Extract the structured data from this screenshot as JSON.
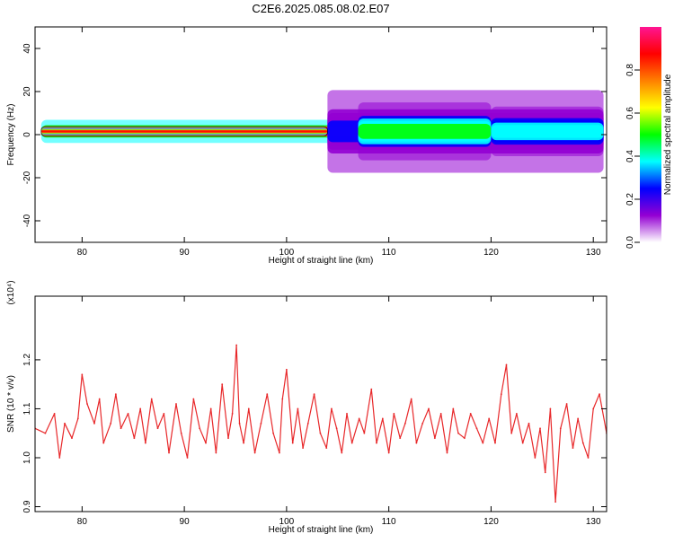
{
  "title": "C2E6.2025.085.08.02.E07",
  "chart_data": [
    {
      "type": "heatmap",
      "xlabel": "Height of straight line (km)",
      "ylabel": "Frequency (Hz)",
      "xlim": [
        75.4,
        131.3
      ],
      "ylim": [
        -50,
        50
      ],
      "xticks": [
        80,
        90,
        100,
        110,
        120,
        130
      ],
      "yticks": [
        -40,
        -20,
        0,
        20,
        40
      ],
      "band_center_hz": 1.5,
      "band_features": [
        {
          "x": [
            76,
            131
          ],
          "halfwidth_hz": 1.4,
          "level": 1.0
        },
        {
          "x": [
            76,
            104
          ],
          "halfwidth_hz": 0.5,
          "level": 0.9
        },
        {
          "x": [
            104,
            131
          ],
          "halfwidth_hz": 5,
          "level": 0.2
        },
        {
          "x": [
            107,
            120
          ],
          "halfwidth_hz": 3.5,
          "level": 0.45
        },
        {
          "x": [
            120,
            131
          ],
          "halfwidth_hz": 3,
          "level": 0.4
        }
      ],
      "colorbar": {
        "label": "Normalized spectral amplitude",
        "range": [
          0,
          1
        ],
        "ticks": [
          "0.0",
          "0.2",
          "0.4",
          "0.6",
          "0.8"
        ],
        "colors": [
          "#ffffff",
          "#9400d3",
          "#0000ff",
          "#00ffff",
          "#00ff00",
          "#ffff00",
          "#ff8000",
          "#ff0000",
          "#ff1493"
        ]
      },
      "grid": false
    },
    {
      "type": "line",
      "xlabel": "Height of straight line (km)",
      "ylabel": "SNR (10 * v/v)",
      "multiplier": "(x10⁴)",
      "xlim": [
        75.4,
        131.3
      ],
      "ylim": [
        0.89,
        1.33
      ],
      "xticks": [
        80,
        90,
        100,
        110,
        120,
        130
      ],
      "yticks": [
        0.9,
        1.0,
        1.1,
        1.2
      ],
      "ytick_labels": [
        "0.9",
        "1.0",
        "1.1",
        "1.2"
      ],
      "series": [
        {
          "color": "#e8282a",
          "x": [
            75.4,
            76.4,
            77.3,
            77.8,
            78.3,
            79.0,
            79.6,
            80.0,
            80.5,
            81.2,
            81.7,
            82.1,
            82.8,
            83.3,
            83.8,
            84.5,
            85.1,
            85.7,
            86.2,
            86.8,
            87.4,
            88.0,
            88.5,
            89.2,
            89.7,
            90.3,
            90.9,
            91.5,
            92.1,
            92.6,
            93.1,
            93.7,
            94.3,
            94.7,
            95.1,
            95.4,
            95.8,
            96.3,
            96.9,
            97.5,
            98.1,
            98.7,
            99.3,
            99.6,
            100.0,
            100.6,
            101.1,
            101.6,
            102.1,
            102.7,
            103.3,
            103.9,
            104.4,
            104.9,
            105.4,
            105.9,
            106.4,
            107.1,
            107.6,
            108.3,
            108.8,
            109.4,
            110.0,
            110.5,
            111.1,
            111.6,
            112.2,
            112.7,
            113.3,
            113.9,
            114.5,
            115.1,
            115.7,
            116.3,
            116.8,
            117.4,
            118.0,
            118.6,
            119.2,
            119.8,
            120.4,
            121.0,
            121.5,
            122.0,
            122.5,
            123.1,
            123.7,
            124.3,
            124.8,
            125.3,
            125.8,
            126.3,
            126.8,
            127.4,
            128.0,
            128.5,
            129.0,
            129.5,
            130.0,
            130.6,
            131.3
          ],
          "values": [
            1.06,
            1.05,
            1.09,
            1.0,
            1.07,
            1.04,
            1.08,
            1.17,
            1.11,
            1.07,
            1.12,
            1.03,
            1.07,
            1.13,
            1.06,
            1.09,
            1.04,
            1.1,
            1.03,
            1.12,
            1.06,
            1.09,
            1.01,
            1.11,
            1.05,
            1.0,
            1.12,
            1.06,
            1.03,
            1.1,
            1.01,
            1.15,
            1.04,
            1.09,
            1.23,
            1.07,
            1.03,
            1.1,
            1.01,
            1.07,
            1.13,
            1.05,
            1.01,
            1.12,
            1.18,
            1.03,
            1.1,
            1.02,
            1.07,
            1.13,
            1.05,
            1.02,
            1.1,
            1.06,
            1.01,
            1.09,
            1.03,
            1.08,
            1.05,
            1.14,
            1.03,
            1.08,
            1.01,
            1.09,
            1.04,
            1.07,
            1.12,
            1.03,
            1.07,
            1.1,
            1.04,
            1.09,
            1.01,
            1.1,
            1.05,
            1.04,
            1.09,
            1.06,
            1.03,
            1.08,
            1.03,
            1.13,
            1.19,
            1.05,
            1.09,
            1.03,
            1.07,
            1.0,
            1.06,
            0.97,
            1.1,
            0.91,
            1.06,
            1.11,
            1.02,
            1.08,
            1.03,
            1.0,
            1.1,
            1.13,
            1.05
          ]
        }
      ],
      "grid": false
    }
  ]
}
